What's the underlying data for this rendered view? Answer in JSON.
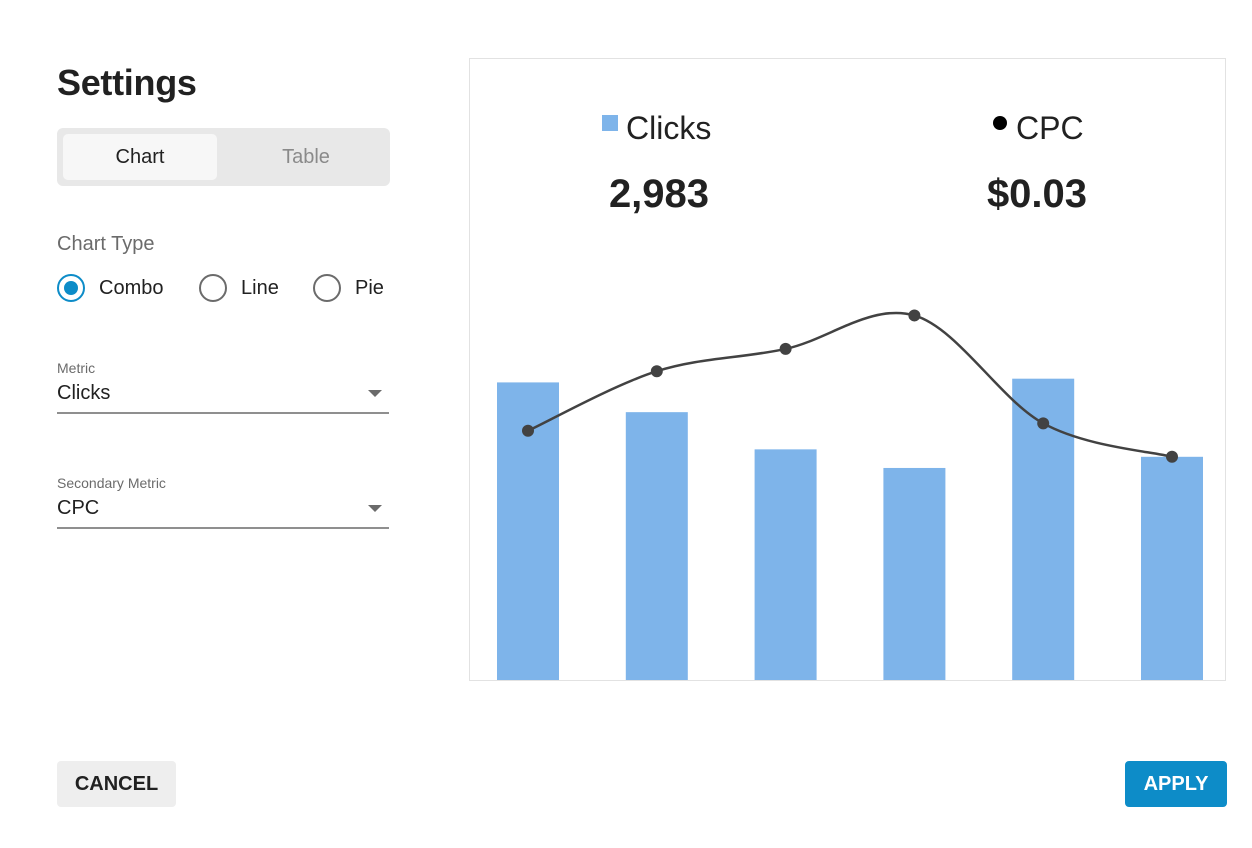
{
  "dialog": {
    "title": "Settings"
  },
  "view_toggle": {
    "options": [
      "Chart",
      "Table"
    ],
    "selected": "Chart"
  },
  "chart_type": {
    "label": "Chart Type",
    "options": [
      "Combo",
      "Line",
      "Pie"
    ],
    "selected": "Combo"
  },
  "metric": {
    "label": "Metric",
    "value": "Clicks"
  },
  "secondary_metric": {
    "label": "Secondary Metric",
    "value": "CPC"
  },
  "summary": {
    "primary_name": "Clicks",
    "primary_value": "2,983",
    "secondary_name": "CPC",
    "secondary_value": "$0.03"
  },
  "actions": {
    "cancel_label": "CANCEL",
    "apply_label": "APPLY"
  },
  "colors": {
    "accent": "#0d8cc8",
    "bar": "#7eb4ea",
    "line": "#424242",
    "cpc_dot": "#000000"
  },
  "chart_data": {
    "type": "bar",
    "series": [
      {
        "name": "Clicks",
        "type": "bar",
        "values": [
          0.8,
          0.72,
          0.62,
          0.57,
          0.81,
          0.6
        ]
      },
      {
        "name": "CPC",
        "type": "line",
        "values": [
          0.67,
          0.83,
          0.89,
          0.98,
          0.69,
          0.6
        ]
      }
    ],
    "ylim": [
      0,
      1
    ],
    "grid": false,
    "legend": "top"
  }
}
